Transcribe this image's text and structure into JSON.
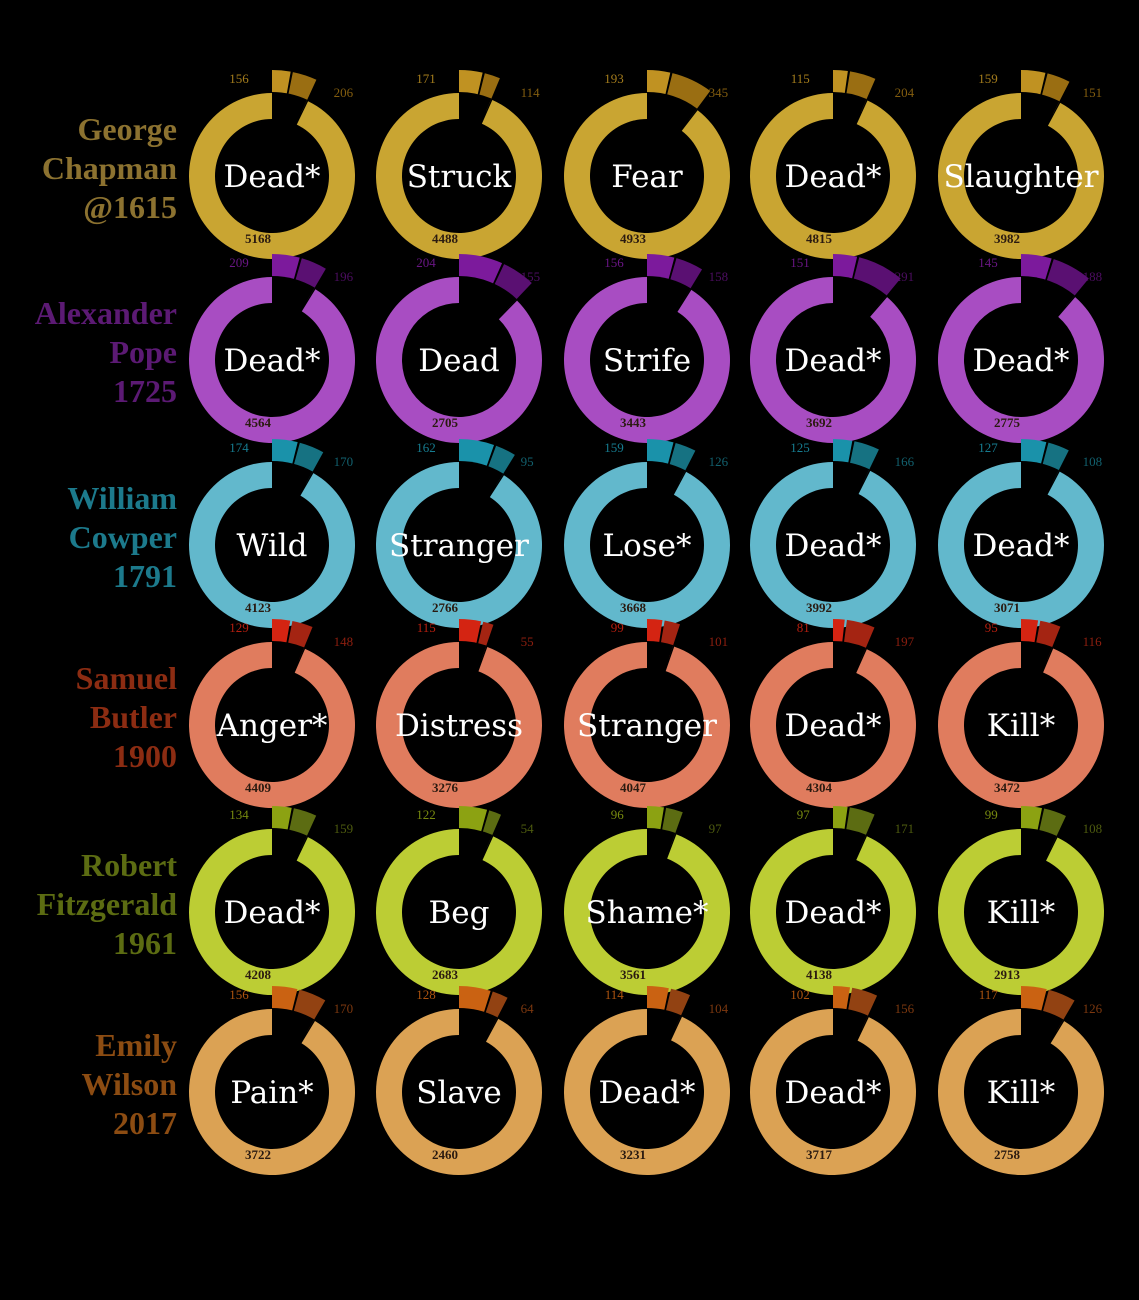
{
  "chart_data": {
    "type": "pie",
    "variant": "donut",
    "grid": false,
    "rows": [
      {
        "translator": [
          "George",
          "Chapman",
          "@1615"
        ],
        "color": "#c9a532",
        "name_color": "#8c7230",
        "wedge_colors": [
          "#c09222",
          "#9a6e12"
        ],
        "cells": [
          {
            "word": "Dead*",
            "main": 5168,
            "a": 156,
            "b": 206
          },
          {
            "word": "Struck",
            "main": 4488,
            "a": 171,
            "b": 114
          },
          {
            "word": "Fear",
            "main": 4933,
            "a": 193,
            "b": 345
          },
          {
            "word": "Dead*",
            "main": 4815,
            "a": 115,
            "b": 204
          },
          {
            "word": "Slaughter",
            "main": 3982,
            "a": 159,
            "b": 151
          }
        ]
      },
      {
        "translator": [
          "Alexander",
          "Pope",
          "1725"
        ],
        "color": "#a84dc2",
        "name_color": "#5c1a74",
        "wedge_colors": [
          "#7c1a9c",
          "#5a1072"
        ],
        "cells": [
          {
            "word": "Dead*",
            "main": 4564,
            "a": 209,
            "b": 196
          },
          {
            "word": "Dead",
            "main": 2705,
            "a": 204,
            "b": 155
          },
          {
            "word": "Strife",
            "main": 3443,
            "a": 156,
            "b": 158
          },
          {
            "word": "Dead*",
            "main": 3692,
            "a": 151,
            "b": 291
          },
          {
            "word": "Dead*",
            "main": 2775,
            "a": 145,
            "b": 188
          }
        ]
      },
      {
        "translator": [
          "William",
          "Cowper",
          "1791"
        ],
        "color": "#62b8cc",
        "name_color": "#1c7a8c",
        "wedge_colors": [
          "#1a92aa",
          "#167282"
        ],
        "cells": [
          {
            "word": "Wild",
            "main": 4123,
            "a": 174,
            "b": 170
          },
          {
            "word": "Stranger",
            "main": 2766,
            "a": 162,
            "b": 95
          },
          {
            "word": "Lose*",
            "main": 3668,
            "a": 159,
            "b": 126
          },
          {
            "word": "Dead*",
            "main": 3992,
            "a": 125,
            "b": 166
          },
          {
            "word": "Dead*",
            "main": 3071,
            "a": 127,
            "b": 108
          }
        ]
      },
      {
        "translator": [
          "Samuel",
          "Butler",
          "1900"
        ],
        "color": "#e07c5e",
        "name_color": "#8c2c12",
        "wedge_colors": [
          "#d42412",
          "#a42412"
        ],
        "cells": [
          {
            "word": "Anger*",
            "main": 4409,
            "a": 129,
            "b": 148
          },
          {
            "word": "Distress",
            "main": 3276,
            "a": 115,
            "b": 55
          },
          {
            "word": "Stranger",
            "main": 4047,
            "a": 99,
            "b": 101
          },
          {
            "word": "Dead*",
            "main": 4304,
            "a": 81,
            "b": 197
          },
          {
            "word": "Kill*",
            "main": 3472,
            "a": 95,
            "b": 116
          }
        ]
      },
      {
        "translator": [
          "Robert",
          "Fitzgerald",
          "1961"
        ],
        "color": "#bccd34",
        "name_color": "#5c6c12",
        "wedge_colors": [
          "#8ca212",
          "#5c6c12"
        ],
        "cells": [
          {
            "word": "Dead*",
            "main": 4208,
            "a": 134,
            "b": 159
          },
          {
            "word": "Beg",
            "main": 2683,
            "a": 122,
            "b": 54
          },
          {
            "word": "Shame*",
            "main": 3561,
            "a": 96,
            "b": 97
          },
          {
            "word": "Dead*",
            "main": 4138,
            "a": 97,
            "b": 171
          },
          {
            "word": "Kill*",
            "main": 2913,
            "a": 99,
            "b": 108
          }
        ]
      },
      {
        "translator": [
          "Emily",
          "Wilson",
          "2017"
        ],
        "color": "#dba254",
        "name_color": "#8c4c12",
        "wedge_colors": [
          "#ca6212",
          "#924212"
        ],
        "cells": [
          {
            "word": "Pain*",
            "main": 3722,
            "a": 156,
            "b": 170
          },
          {
            "word": "Slave",
            "main": 2460,
            "a": 128,
            "b": 64
          },
          {
            "word": "Dead*",
            "main": 3231,
            "a": 114,
            "b": 104
          },
          {
            "word": "Dead*",
            "main": 3717,
            "a": 102,
            "b": 156
          },
          {
            "word": "Kill*",
            "main": 2758,
            "a": 117,
            "b": 126
          }
        ]
      }
    ]
  }
}
